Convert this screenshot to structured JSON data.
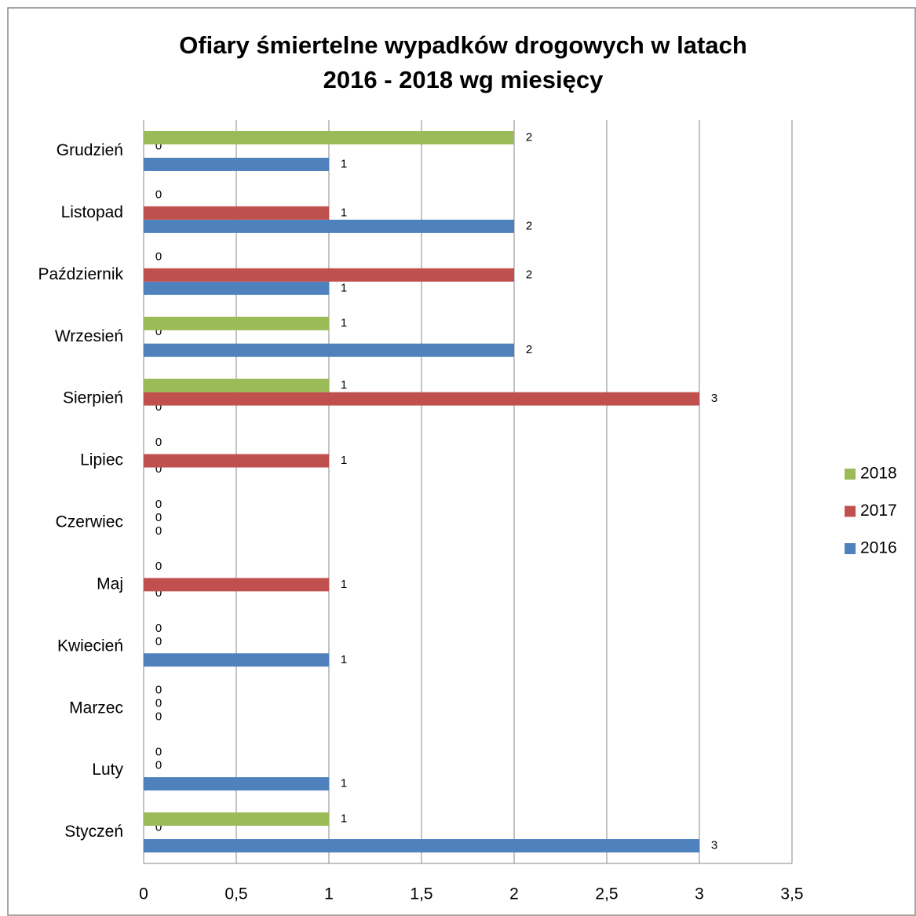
{
  "chart_data": {
    "type": "bar",
    "orientation": "horizontal",
    "title": [
      "Ofiary śmiertelne wypadków drogowych w latach",
      "2016 - 2018 wg miesięcy"
    ],
    "categories": [
      "Styczeń",
      "Luty",
      "Marzec",
      "Kwiecień",
      "Maj",
      "Czerwiec",
      "Lipiec",
      "Sierpień",
      "Wrzesień",
      "Październik",
      "Listopad",
      "Grudzień"
    ],
    "series": [
      {
        "name": "2016",
        "color": "#4f81bd",
        "values": [
          3,
          1,
          0,
          1,
          0,
          0,
          0,
          0,
          2,
          1,
          2,
          1
        ]
      },
      {
        "name": "2017",
        "color": "#c0504d",
        "values": [
          0,
          0,
          0,
          0,
          1,
          0,
          1,
          3,
          0,
          2,
          1,
          0
        ]
      },
      {
        "name": "2018",
        "color": "#9bbb59",
        "values": [
          1,
          0,
          0,
          0,
          0,
          0,
          0,
          1,
          1,
          0,
          0,
          2
        ]
      }
    ],
    "xlim": [
      0,
      3.5
    ],
    "xticks": [
      0,
      {
        "value": 0.5,
        "label": "0,5"
      },
      1,
      {
        "value": 1.5,
        "label": "1,5"
      },
      2,
      {
        "value": 2.5,
        "label": "2,5"
      },
      3,
      {
        "value": 3.5,
        "label": "3,5"
      }
    ],
    "grid": true,
    "legend": "right"
  }
}
